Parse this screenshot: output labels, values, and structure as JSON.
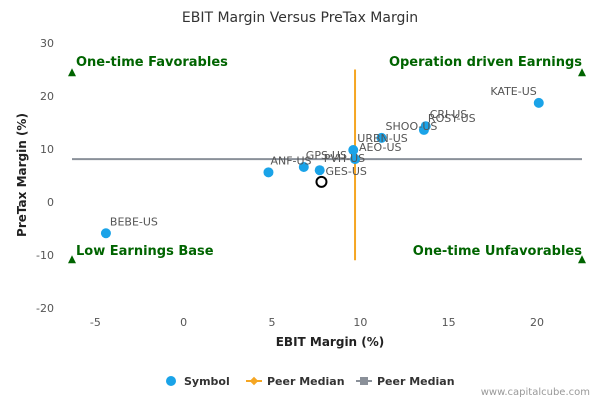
{
  "chart_data": {
    "type": "scatter",
    "title": "EBIT Margin Versus PreTax Margin",
    "xlabel": "EBIT Margin (%)",
    "ylabel": "PreTax Margin (%)",
    "xlim": [
      -7,
      23
    ],
    "ylim": [
      -20,
      30
    ],
    "xticks": [
      -5,
      0,
      5,
      10,
      15,
      20
    ],
    "yticks": [
      -20,
      -10,
      0,
      10,
      20,
      30
    ],
    "points": [
      {
        "label": "KATE-US",
        "x": 20.1,
        "y": 18.7
      },
      {
        "label": "CRI-US",
        "x": 13.7,
        "y": 14.3
      },
      {
        "label": "ROSY-US",
        "x": 13.6,
        "y": 13.6
      },
      {
        "label": "SHOO-US",
        "x": 11.2,
        "y": 12.1
      },
      {
        "label": "URBN-US",
        "x": 9.6,
        "y": 9.8
      },
      {
        "label": "AEO-US",
        "x": 9.7,
        "y": 8.1
      },
      {
        "label": "PVH-US",
        "x": 7.7,
        "y": 6.0
      },
      {
        "label": "GPS-US",
        "x": 6.8,
        "y": 6.6
      },
      {
        "label": "ANF-US",
        "x": 4.8,
        "y": 5.6
      },
      {
        "label": "BEBE-US",
        "x": -4.4,
        "y": -5.9
      }
    ],
    "highlight": {
      "label": "GES-US",
      "x": 7.8,
      "y": 3.8
    },
    "peer_median_x": 9.7,
    "peer_median_y": 8.1,
    "quadrants": {
      "top_left": "One-time Favorables",
      "top_right": "Operation driven Earnings",
      "bottom_left": "Low Earnings Base",
      "bottom_right": "One-time Unfavorables"
    },
    "legend": [
      {
        "name": "Symbol",
        "type": "dot"
      },
      {
        "name": "Peer Median",
        "type": "vline"
      },
      {
        "name": "Peer Median",
        "type": "hline"
      }
    ],
    "colors": {
      "points": "#1aa3e8",
      "vline": "#f5a623",
      "hline": "#8a9099",
      "quad_text": "#006400",
      "highlight": "#000000"
    }
  },
  "credit": "www.capitalcube.com"
}
